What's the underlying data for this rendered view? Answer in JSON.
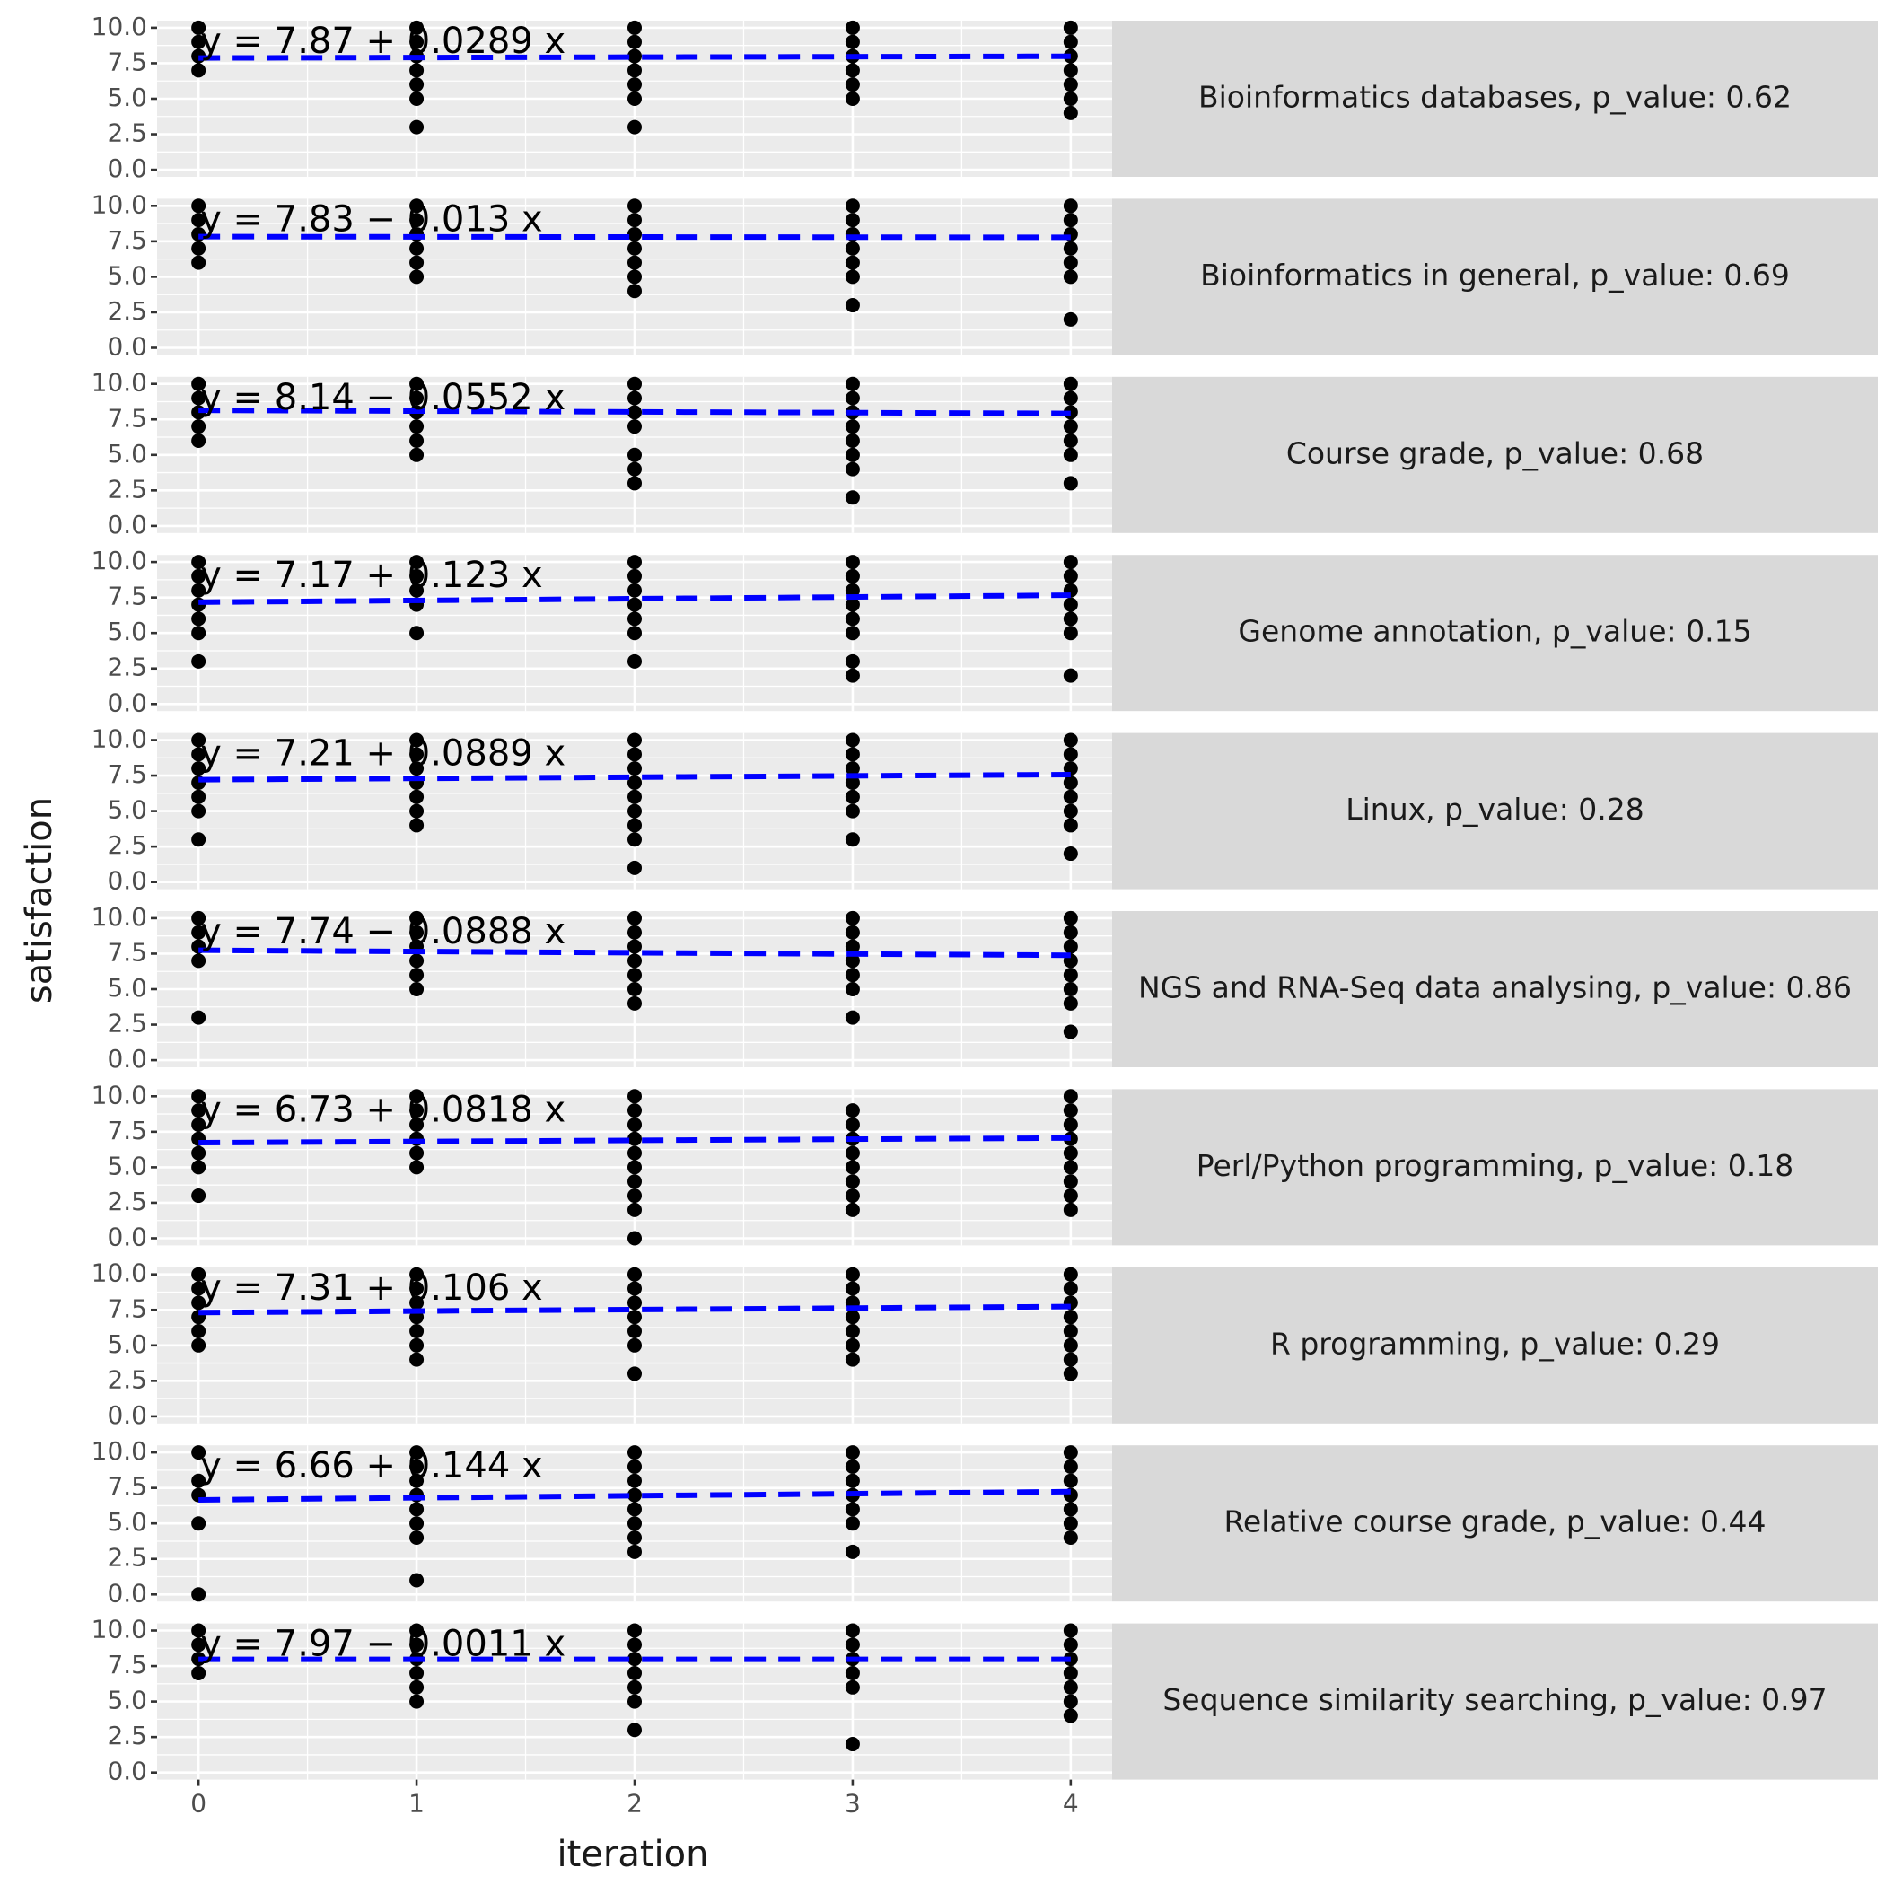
{
  "chart_data": {
    "type": "scatter",
    "xlabel": "iteration",
    "ylabel": "satisfaction",
    "xlim": [
      -0.19,
      4.19
    ],
    "xticks": [
      0,
      1,
      2,
      3,
      4
    ],
    "ylim": [
      -0.5,
      10.5
    ],
    "yticks": [
      {
        "value": 0,
        "label": "0.0"
      },
      2.5,
      {
        "value": 5,
        "label": "5.0"
      },
      7.5,
      {
        "value": 10,
        "label": "10.0"
      }
    ],
    "grid": true,
    "point_color": "#000000",
    "line_color": "#0000ff",
    "panels": [
      {
        "strip": "Bioinformatics databases, p_value: 0.62",
        "equation": "y = 7.87 + 0.0289 x",
        "x": [
          0,
          0,
          0,
          0,
          1,
          1,
          1,
          1,
          1,
          1,
          1,
          2,
          2,
          2,
          2,
          2,
          2,
          2,
          3,
          3,
          3,
          3,
          3,
          3,
          4,
          4,
          4,
          4,
          4,
          4,
          4
        ],
        "y": [
          10,
          9,
          8,
          7,
          10,
          9,
          8,
          7,
          6,
          5,
          3,
          10,
          9,
          8,
          7,
          6,
          5,
          3,
          10,
          9,
          8,
          7,
          6,
          5,
          10,
          9,
          8,
          7,
          6,
          5,
          4
        ],
        "fit": {
          "x": [
            0,
            4
          ],
          "y": [
            7.87,
            7.99
          ]
        }
      },
      {
        "strip": "Bioinformatics in general, p_value: 0.69",
        "equation": "y = 7.83 − 0.013 x",
        "x": [
          0,
          0,
          0,
          0,
          0,
          1,
          1,
          1,
          1,
          1,
          1,
          2,
          2,
          2,
          2,
          2,
          2,
          2,
          3,
          3,
          3,
          3,
          3,
          3,
          3,
          4,
          4,
          4,
          4,
          4,
          4,
          4
        ],
        "y": [
          10,
          9,
          8,
          7,
          6,
          10,
          9,
          8,
          7,
          6,
          5,
          10,
          9,
          8,
          7,
          6,
          5,
          4,
          10,
          9,
          8,
          7,
          6,
          5,
          3,
          10,
          9,
          8,
          7,
          6,
          5,
          2
        ],
        "fit": {
          "x": [
            0,
            4
          ],
          "y": [
            7.83,
            7.78
          ]
        }
      },
      {
        "strip": "Course grade, p_value: 0.68",
        "equation": "y = 8.14 − 0.0552 x",
        "x": [
          0,
          0,
          0,
          0,
          0,
          1,
          1,
          1,
          1,
          1,
          1,
          2,
          2,
          2,
          2,
          2,
          2,
          2,
          3,
          3,
          3,
          3,
          3,
          3,
          3,
          3,
          4,
          4,
          4,
          4,
          4,
          4,
          4
        ],
        "y": [
          10,
          9,
          8,
          7,
          6,
          10,
          9,
          8,
          7,
          6,
          5,
          10,
          9,
          8,
          7,
          5,
          4,
          3,
          10,
          9,
          8,
          7,
          6,
          5,
          4,
          2,
          10,
          9,
          8,
          7,
          6,
          5,
          3
        ],
        "fit": {
          "x": [
            0,
            4
          ],
          "y": [
            8.14,
            7.92
          ]
        }
      },
      {
        "strip": "Genome annotation, p_value: 0.15",
        "equation": "y = 7.17 + 0.123 x",
        "x": [
          0,
          0,
          0,
          0,
          0,
          0,
          0,
          1,
          1,
          1,
          1,
          1,
          2,
          2,
          2,
          2,
          2,
          2,
          2,
          3,
          3,
          3,
          3,
          3,
          3,
          3,
          3,
          4,
          4,
          4,
          4,
          4,
          4,
          4
        ],
        "y": [
          10,
          9,
          8,
          7,
          6,
          5,
          3,
          10,
          9,
          8,
          7,
          5,
          10,
          9,
          8,
          7,
          6,
          5,
          3,
          10,
          9,
          8,
          7,
          6,
          5,
          3,
          2,
          10,
          9,
          8,
          7,
          6,
          5,
          2
        ],
        "fit": {
          "x": [
            0,
            4
          ],
          "y": [
            7.17,
            7.66
          ]
        }
      },
      {
        "strip": "Linux, p_value: 0.28",
        "equation": "y = 7.21 + 0.0889 x",
        "x": [
          0,
          0,
          0,
          0,
          0,
          0,
          0,
          1,
          1,
          1,
          1,
          1,
          1,
          1,
          2,
          2,
          2,
          2,
          2,
          2,
          2,
          2,
          2,
          3,
          3,
          3,
          3,
          3,
          3,
          3,
          4,
          4,
          4,
          4,
          4,
          4,
          4,
          4
        ],
        "y": [
          10,
          9,
          8,
          7,
          6,
          5,
          3,
          10,
          9,
          8,
          7,
          6,
          5,
          4,
          10,
          9,
          8,
          7,
          6,
          5,
          4,
          3,
          1,
          10,
          9,
          8,
          7,
          6,
          5,
          3,
          10,
          9,
          8,
          7,
          6,
          5,
          4,
          2
        ],
        "fit": {
          "x": [
            0,
            4
          ],
          "y": [
            7.21,
            7.57
          ]
        }
      },
      {
        "strip": "NGS and RNA-Seq data analysing, p_value: 0.86",
        "equation": "y = 7.74 − 0.0888 x",
        "x": [
          0,
          0,
          0,
          0,
          0,
          1,
          1,
          1,
          1,
          1,
          1,
          2,
          2,
          2,
          2,
          2,
          2,
          2,
          3,
          3,
          3,
          3,
          3,
          3,
          3,
          4,
          4,
          4,
          4,
          4,
          4,
          4,
          4
        ],
        "y": [
          10,
          9,
          8,
          7,
          3,
          10,
          9,
          8,
          7,
          6,
          5,
          10,
          9,
          8,
          7,
          6,
          5,
          4,
          10,
          9,
          8,
          7,
          6,
          5,
          3,
          10,
          9,
          8,
          7,
          6,
          5,
          4,
          2
        ],
        "fit": {
          "x": [
            0,
            4
          ],
          "y": [
            7.74,
            7.39
          ]
        }
      },
      {
        "strip": "Perl/Python programming, p_value: 0.18",
        "equation": "y = 6.73 + 0.0818 x",
        "x": [
          0,
          0,
          0,
          0,
          0,
          0,
          0,
          1,
          1,
          1,
          1,
          1,
          1,
          2,
          2,
          2,
          2,
          2,
          2,
          2,
          2,
          2,
          2,
          3,
          3,
          3,
          3,
          3,
          3,
          3,
          3,
          4,
          4,
          4,
          4,
          4,
          4,
          4,
          4,
          4
        ],
        "y": [
          10,
          9,
          8,
          7,
          6,
          5,
          3,
          10,
          9,
          8,
          7,
          6,
          5,
          10,
          9,
          8,
          7,
          6,
          5,
          4,
          3,
          2,
          0,
          9,
          8,
          7,
          6,
          5,
          4,
          3,
          2,
          10,
          9,
          8,
          7,
          6,
          5,
          4,
          3,
          2
        ],
        "fit": {
          "x": [
            0,
            4
          ],
          "y": [
            6.73,
            7.06
          ]
        }
      },
      {
        "strip": "R programming, p_value: 0.29",
        "equation": "y = 7.31 + 0.106 x",
        "x": [
          0,
          0,
          0,
          0,
          0,
          0,
          1,
          1,
          1,
          1,
          1,
          1,
          1,
          2,
          2,
          2,
          2,
          2,
          2,
          2,
          3,
          3,
          3,
          3,
          3,
          3,
          3,
          4,
          4,
          4,
          4,
          4,
          4,
          4,
          4
        ],
        "y": [
          10,
          9,
          8,
          7,
          6,
          5,
          10,
          9,
          8,
          7,
          6,
          5,
          4,
          10,
          9,
          8,
          7,
          6,
          5,
          3,
          10,
          9,
          8,
          7,
          6,
          5,
          4,
          10,
          9,
          8,
          7,
          6,
          5,
          4,
          3
        ],
        "fit": {
          "x": [
            0,
            4
          ],
          "y": [
            7.31,
            7.73
          ]
        }
      },
      {
        "strip": "Relative course grade, p_value: 0.44",
        "equation": "y = 6.66 + 0.144 x",
        "x": [
          0,
          0,
          0,
          0,
          0,
          1,
          1,
          1,
          1,
          1,
          1,
          1,
          1,
          2,
          2,
          2,
          2,
          2,
          2,
          2,
          2,
          3,
          3,
          3,
          3,
          3,
          3,
          3,
          4,
          4,
          4,
          4,
          4,
          4,
          4
        ],
        "y": [
          10,
          8,
          7,
          5,
          0,
          10,
          9,
          8,
          7,
          6,
          5,
          4,
          1,
          10,
          9,
          8,
          7,
          6,
          5,
          4,
          3,
          10,
          9,
          8,
          7,
          6,
          5,
          3,
          10,
          9,
          8,
          7,
          6,
          5,
          4
        ],
        "fit": {
          "x": [
            0,
            4
          ],
          "y": [
            6.66,
            7.24
          ]
        }
      },
      {
        "strip": "Sequence similarity searching, p_value: 0.97",
        "equation": "y = 7.97 − 0.0011 x",
        "x": [
          0,
          0,
          0,
          0,
          1,
          1,
          1,
          1,
          1,
          1,
          2,
          2,
          2,
          2,
          2,
          2,
          2,
          3,
          3,
          3,
          3,
          3,
          3,
          4,
          4,
          4,
          4,
          4,
          4,
          4
        ],
        "y": [
          10,
          9,
          8,
          7,
          10,
          9,
          8,
          7,
          6,
          5,
          10,
          9,
          8,
          7,
          6,
          5,
          3,
          10,
          9,
          8,
          7,
          6,
          2,
          10,
          9,
          8,
          7,
          6,
          5,
          4
        ],
        "fit": {
          "x": [
            0,
            4
          ],
          "y": [
            7.97,
            7.97
          ]
        }
      }
    ]
  }
}
